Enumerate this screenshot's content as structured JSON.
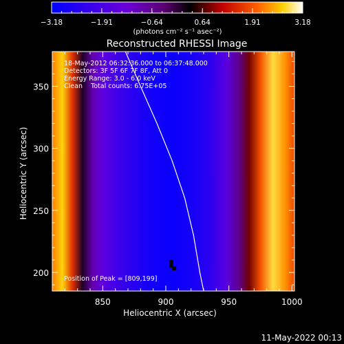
{
  "chart_data": {
    "type": "heatmap",
    "title": "Reconstructed RHESSI Image",
    "xlabel": "Heliocentric X (arcsec)",
    "ylabel": "Heliocentric Y (arcsec)",
    "xlim": [
      810,
      1002
    ],
    "ylim": [
      185,
      378
    ],
    "x_ticks": [
      850,
      900,
      950,
      1000
    ],
    "y_ticks": [
      200,
      250,
      300,
      350
    ],
    "colorbar": {
      "ticks": [
        -3.18,
        -1.91,
        -0.64,
        0.64,
        1.91,
        3.18
      ],
      "tick_labels": [
        "-3.18",
        "-1.91",
        "-0.64",
        "0.64",
        "1.91",
        "3.18"
      ],
      "label": "(photons cm⁻² s⁻¹ asec⁻²)",
      "range": [
        -3.18,
        3.18
      ]
    },
    "annotations": [
      "18-May-2012 06:32:36.000 to 06:37:48.000",
      "Detectors: 3F 5F 6F 7F 8F, Att 0",
      "Energy Range: 3.0 - 6.0 keV",
      "Clean    Total counts: 6.75E+05"
    ],
    "peak_label": "Position of Peak = [809,199]",
    "limb_curve": [
      [
        868,
        378
      ],
      [
        880,
        350
      ],
      [
        893,
        320
      ],
      [
        905,
        290
      ],
      [
        915,
        260
      ],
      [
        922,
        230
      ],
      [
        927,
        200
      ],
      [
        930,
        185
      ]
    ],
    "columns": [
      {
        "x": 810,
        "v": 2.2
      },
      {
        "x": 818,
        "v": 2.7
      },
      {
        "x": 826,
        "v": 1.6
      },
      {
        "x": 834,
        "v": 0.1
      },
      {
        "x": 842,
        "v": -0.9
      },
      {
        "x": 850,
        "v": -1.5
      },
      {
        "x": 860,
        "v": -2.0
      },
      {
        "x": 875,
        "v": -2.5
      },
      {
        "x": 890,
        "v": -2.9
      },
      {
        "x": 905,
        "v": -3.0
      },
      {
        "x": 920,
        "v": -2.8
      },
      {
        "x": 935,
        "v": -2.4
      },
      {
        "x": 948,
        "v": -1.6
      },
      {
        "x": 958,
        "v": -0.6
      },
      {
        "x": 966,
        "v": 0.8
      },
      {
        "x": 975,
        "v": 1.9
      },
      {
        "x": 985,
        "v": 2.8
      },
      {
        "x": 995,
        "v": 2.3
      },
      {
        "x": 1002,
        "v": 1.8
      }
    ]
  },
  "footer": {
    "timestamp": "11-May-2022 00:13"
  }
}
